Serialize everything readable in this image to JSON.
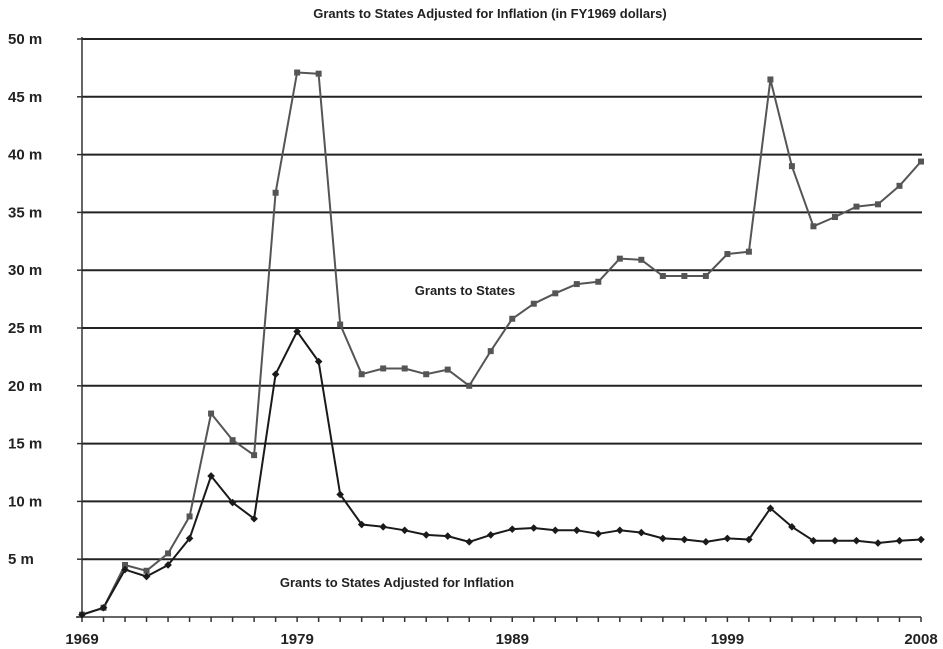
{
  "chart_data": {
    "type": "line",
    "title": "Grants to States Adjusted for Inflation (in FY1969 dollars)",
    "xlabel": "",
    "ylabel": "",
    "xlim": [
      1969,
      2008
    ],
    "ylim": [
      0,
      50
    ],
    "x_ticks": [
      "1969",
      "1979",
      "1989",
      "1999",
      "2008"
    ],
    "y_ticks": [
      "5 m",
      "10 m",
      "15 m",
      "20 m",
      "25 m",
      "30 m",
      "35 m",
      "40 m",
      "45 m",
      "50 m"
    ],
    "grid": true,
    "x": [
      1969,
      1970,
      1971,
      1972,
      1973,
      1974,
      1975,
      1976,
      1977,
      1978,
      1979,
      1980,
      1981,
      1982,
      1983,
      1984,
      1985,
      1986,
      1987,
      1988,
      1989,
      1990,
      1991,
      1992,
      1993,
      1994,
      1995,
      1996,
      1997,
      1998,
      1999,
      2000,
      2001,
      2002,
      2003,
      2004,
      2005,
      2006,
      2007,
      2008
    ],
    "series": [
      {
        "name": "Grants to States",
        "color": "#555555",
        "marker": "square",
        "values": [
          0.2,
          0.8,
          4.5,
          4.0,
          5.5,
          8.7,
          17.6,
          15.3,
          14.0,
          36.7,
          47.1,
          47.0,
          25.3,
          21.0,
          21.5,
          21.5,
          21.0,
          21.4,
          20.0,
          23.0,
          25.8,
          27.1,
          28.0,
          28.8,
          29.0,
          31.0,
          30.9,
          29.5,
          29.5,
          29.5,
          31.4,
          31.6,
          46.5,
          39.0,
          33.8,
          34.6,
          35.5,
          35.7,
          37.3,
          39.4
        ]
      },
      {
        "name": "Grants to States Adjusted for Inflation",
        "color": "#1a1a1a",
        "marker": "diamond",
        "values": [
          0.2,
          0.8,
          4.1,
          3.5,
          4.5,
          6.8,
          12.2,
          9.9,
          8.5,
          21.0,
          24.7,
          22.1,
          10.6,
          8.0,
          7.8,
          7.5,
          7.1,
          7.0,
          6.5,
          7.1,
          7.6,
          7.7,
          7.5,
          7.5,
          7.2,
          7.5,
          7.3,
          6.8,
          6.7,
          6.5,
          6.8,
          6.7,
          9.4,
          7.8,
          6.6,
          6.6,
          6.6,
          6.4,
          6.6,
          6.7
        ]
      }
    ]
  }
}
